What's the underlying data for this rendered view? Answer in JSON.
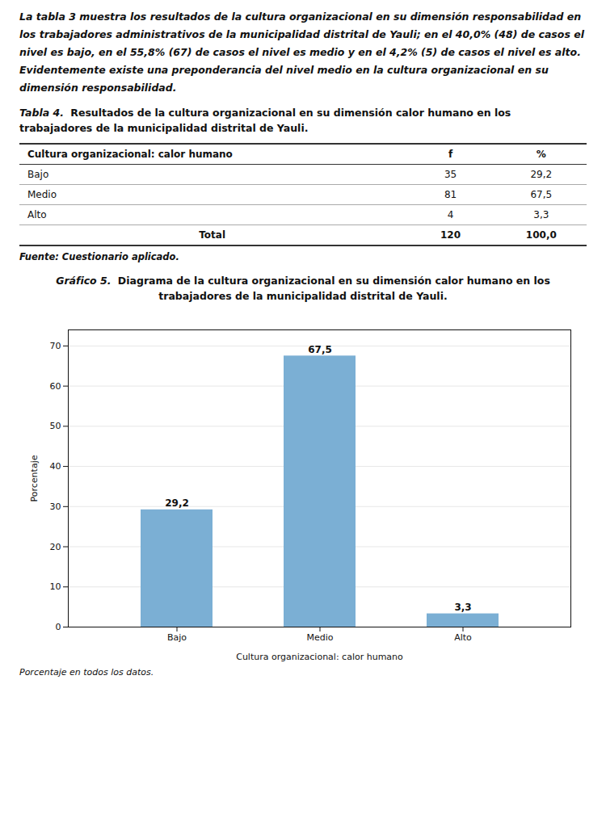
{
  "paragraph": "La tabla 3 muestra los resultados de la cultura organizacional en su dimensión responsabilidad en los trabajadores administrativos de la municipalidad distrital de Yauli; en el 40,0% (48) de casos el nivel es bajo, en el 55,8% (67) de casos el nivel es medio y en el 4,2% (5) de casos el nivel es alto. Evidentemente existe una preponderancia del nivel medio en la cultura organizacional en su dimensión responsabilidad.",
  "table": {
    "title_label": "Tabla 4.",
    "title": "Resultados de la cultura organizacional en su dimensión calor humano en los trabajadores de la municipalidad distrital de Yauli.",
    "header": [
      "Cultura organizacional: calor humano",
      "f",
      "%"
    ],
    "rows": [
      [
        "Bajo",
        "35",
        "29,2"
      ],
      [
        "Medio",
        "81",
        "67,5"
      ],
      [
        "Alto",
        "4",
        "3,3"
      ]
    ],
    "total": [
      "Total",
      "120",
      "100,0"
    ]
  },
  "source": "Fuente: Cuestionario aplicado.",
  "chart_data": {
    "type": "bar",
    "title_label": "Gráfico 5.",
    "title": "Diagrama de la cultura organizacional en su dimensión calor humano en los trabajadores de la municipalidad distrital de Yauli.",
    "categories": [
      "Bajo",
      "Medio",
      "Alto"
    ],
    "values": [
      29.2,
      67.5,
      3.3
    ],
    "value_labels": [
      "29,2",
      "67,5",
      "3,3"
    ],
    "data_labels": true,
    "color": "#7BAFD4",
    "xlabel": "Cultura organizacional: calor humano",
    "ylabel": "Porcentaje",
    "ylim": [
      0,
      74
    ],
    "yticks": [
      0,
      10,
      20,
      30,
      40,
      50,
      60,
      70
    ],
    "grid": true,
    "footnote": "Porcentaje en todos los datos."
  }
}
